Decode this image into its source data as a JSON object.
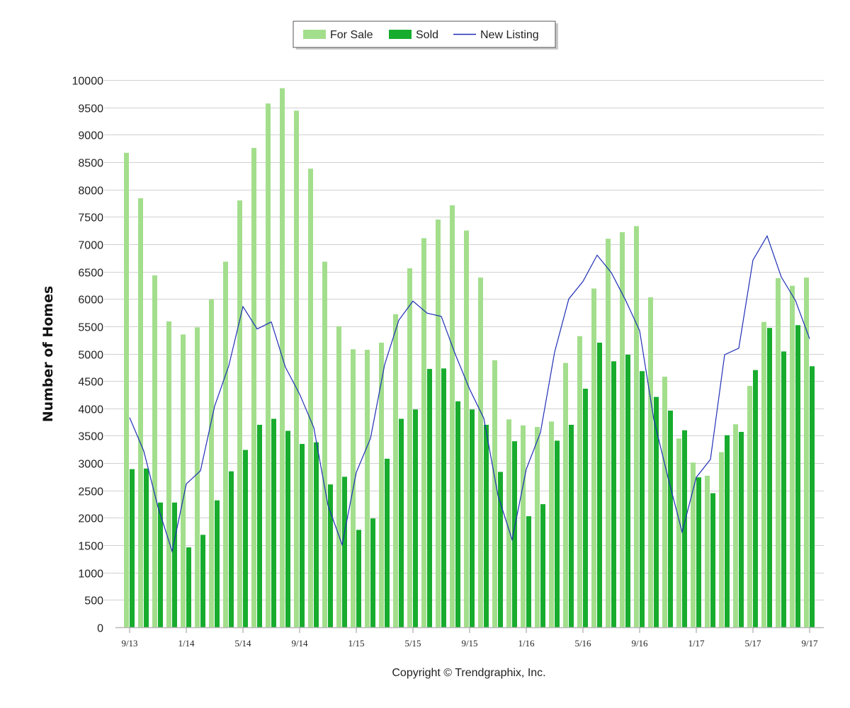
{
  "chart_data": {
    "type": "bar",
    "ylabel": "Number of Homes",
    "xlabel": "",
    "title": "",
    "ylim": [
      0,
      10000
    ],
    "ytick_step": 500,
    "grid": true,
    "legend_position": "top-center",
    "categories": [
      "9/13",
      "10/13",
      "11/13",
      "12/13",
      "1/14",
      "2/14",
      "3/14",
      "4/14",
      "5/14",
      "6/14",
      "7/14",
      "8/14",
      "9/14",
      "10/14",
      "11/14",
      "12/14",
      "1/15",
      "2/15",
      "3/15",
      "4/15",
      "5/15",
      "6/15",
      "7/15",
      "8/15",
      "9/15",
      "10/15",
      "11/15",
      "12/15",
      "1/16",
      "2/16",
      "3/16",
      "4/16",
      "5/16",
      "6/16",
      "7/16",
      "8/16",
      "9/16",
      "10/16",
      "11/16",
      "12/16",
      "1/17",
      "2/17",
      "3/17",
      "4/17",
      "5/17",
      "6/17",
      "7/17",
      "8/17",
      "9/17"
    ],
    "x_tick_labels": [
      "9/13",
      "1/14",
      "5/14",
      "9/14",
      "1/15",
      "5/15",
      "9/15",
      "1/16",
      "5/16",
      "9/16",
      "1/17",
      "5/17",
      "9/17"
    ],
    "series": [
      {
        "name": "For Sale",
        "type": "bar",
        "color": "#a3de8c",
        "values": [
          8670,
          7840,
          6430,
          5590,
          5350,
          5480,
          5990,
          6680,
          7800,
          8760,
          9570,
          9850,
          9440,
          8380,
          6680,
          5500,
          5080,
          5070,
          5200,
          5720,
          6560,
          7110,
          7450,
          7710,
          7250,
          6390,
          4880,
          3800,
          3690,
          3660,
          3760,
          4830,
          5320,
          6190,
          7100,
          7220,
          7330,
          6030,
          4580,
          3450,
          3010,
          2770,
          3200,
          3710,
          4410,
          5580,
          6380,
          6240,
          6390
        ]
      },
      {
        "name": "Sold",
        "type": "bar",
        "color": "#18ac2e",
        "values": [
          2890,
          2900,
          2280,
          2280,
          1460,
          1690,
          2320,
          2850,
          3240,
          3700,
          3810,
          3590,
          3350,
          3380,
          2610,
          2750,
          1780,
          1990,
          3080,
          3810,
          3980,
          4720,
          4730,
          4130,
          3980,
          3700,
          2840,
          3400,
          2030,
          2250,
          3410,
          3700,
          4360,
          5200,
          4860,
          4980,
          4680,
          4210,
          3960,
          3600,
          2740,
          2450,
          3510,
          3570,
          4700,
          5470,
          5040,
          5520,
          4770
        ]
      },
      {
        "name": "New Listing",
        "type": "line",
        "color": "#1f2fb5",
        "values": [
          3830,
          3220,
          2200,
          1390,
          2620,
          2860,
          4040,
          4780,
          5860,
          5450,
          5580,
          4750,
          4260,
          3650,
          2230,
          1510,
          2830,
          3450,
          4800,
          5610,
          5960,
          5740,
          5680,
          4980,
          4350,
          3820,
          2410,
          1600,
          2890,
          3560,
          5030,
          6000,
          6320,
          6800,
          6480,
          5980,
          5420,
          3800,
          2740,
          1740,
          2740,
          3070,
          4980,
          5100,
          6710,
          7150,
          6400,
          5970,
          5270
        ]
      }
    ]
  },
  "copyright": "Copyright © Trendgraphix, Inc."
}
